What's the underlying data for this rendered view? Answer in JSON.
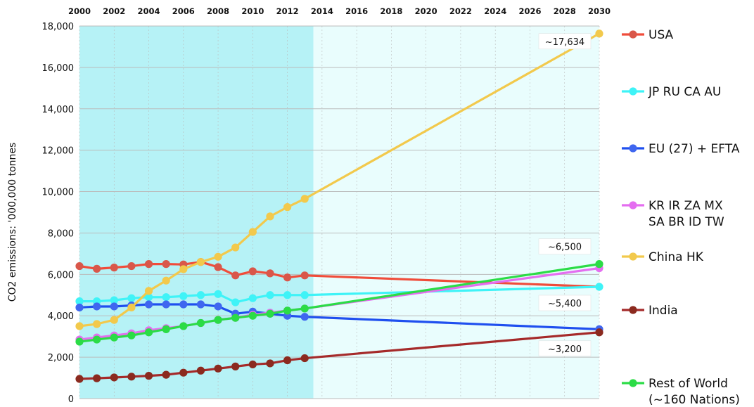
{
  "chart_data": {
    "type": "line",
    "ylabel": "CO2 emissions: '000,000 tonnes",
    "xlim": [
      2000,
      2030
    ],
    "ylim": [
      0,
      18000
    ],
    "grid": true,
    "legend_position": "right",
    "x_ticks": [
      "2000",
      "2002",
      "2004",
      "2006",
      "2008",
      "2010",
      "2012",
      "2014",
      "2016",
      "2018",
      "2020",
      "2022",
      "2024",
      "2026",
      "2028",
      "2030"
    ],
    "y_ticks": [
      "0",
      "2,000",
      "4,000",
      "6,000",
      "8,000",
      "10,000",
      "12,000",
      "14,000",
      "16,000",
      "18,000"
    ],
    "historical_shading_end": 2013,
    "colors": {
      "historical_bg": "#b6f2f6",
      "projection_bg": "#e9fdfd",
      "grid": "#bbbbbb"
    },
    "series": [
      {
        "name": "USA",
        "color": "#f04c3a",
        "point_color": "#d9574a",
        "x": [
          2000,
          2001,
          2002,
          2003,
          2004,
          2005,
          2006,
          2007,
          2008,
          2009,
          2010,
          2011,
          2012,
          2013,
          2030
        ],
        "y": [
          6400,
          6270,
          6330,
          6400,
          6500,
          6500,
          6480,
          6600,
          6350,
          5950,
          6150,
          6050,
          5850,
          5950,
          5400
        ],
        "point_mask": [
          1,
          1,
          1,
          1,
          1,
          1,
          1,
          1,
          1,
          1,
          1,
          1,
          1,
          1,
          0
        ]
      },
      {
        "name": "JP RU CA AU",
        "color": "#3ff3f7",
        "point_color": "#3ff3f7",
        "x": [
          2000,
          2001,
          2002,
          2003,
          2004,
          2005,
          2006,
          2007,
          2008,
          2009,
          2010,
          2011,
          2012,
          2013,
          2030
        ],
        "y": [
          4700,
          4700,
          4750,
          4850,
          4900,
          4900,
          4950,
          5000,
          5050,
          4650,
          4850,
          5000,
          5000,
          5000,
          5400
        ],
        "point_mask": [
          1,
          1,
          1,
          1,
          1,
          1,
          1,
          1,
          1,
          1,
          1,
          1,
          1,
          1,
          1
        ]
      },
      {
        "name": "EU (27) + EFTA",
        "color": "#1f4fef",
        "point_color": "#3f66ef",
        "x": [
          2000,
          2001,
          2002,
          2003,
          2004,
          2005,
          2006,
          2007,
          2008,
          2009,
          2010,
          2011,
          2012,
          2013,
          2030
        ],
        "y": [
          4400,
          4450,
          4450,
          4500,
          4550,
          4550,
          4550,
          4550,
          4450,
          4100,
          4200,
          4100,
          4000,
          3950,
          3350
        ],
        "point_mask": [
          1,
          1,
          1,
          1,
          1,
          1,
          1,
          1,
          1,
          1,
          1,
          1,
          1,
          1,
          1
        ]
      },
      {
        "name": "KR IR ZA MX SA BR ID TW",
        "color": "#e46ef0",
        "point_color": "#e46ef0",
        "x": [
          2000,
          2001,
          2002,
          2003,
          2004,
          2005,
          2006,
          2007,
          2008,
          2009,
          2010,
          2011,
          2012,
          2013,
          2030
        ],
        "y": [
          2850,
          2950,
          3050,
          3150,
          3300,
          3400,
          3500,
          3650,
          3800,
          3900,
          4050,
          4150,
          4250,
          4350,
          6300
        ],
        "point_mask": [
          1,
          1,
          1,
          1,
          1,
          1,
          1,
          1,
          1,
          1,
          1,
          1,
          1,
          1,
          1
        ]
      },
      {
        "name": "China HK",
        "color": "#f2c94c",
        "point_color": "#f2c94c",
        "x": [
          2000,
          2001,
          2002,
          2003,
          2004,
          2005,
          2006,
          2007,
          2008,
          2009,
          2010,
          2011,
          2012,
          2013,
          2030
        ],
        "y": [
          3500,
          3600,
          3800,
          4400,
          5200,
          5700,
          6250,
          6600,
          6850,
          7300,
          8050,
          8800,
          9250,
          9650,
          17634
        ],
        "point_mask": [
          1,
          1,
          1,
          1,
          1,
          1,
          1,
          1,
          1,
          1,
          1,
          1,
          1,
          1,
          1
        ]
      },
      {
        "name": "India",
        "color": "#a52a2a",
        "point_color": "#8b2a1f",
        "x": [
          2000,
          2001,
          2002,
          2003,
          2004,
          2005,
          2006,
          2007,
          2008,
          2009,
          2010,
          2011,
          2012,
          2013,
          2030
        ],
        "y": [
          950,
          980,
          1020,
          1060,
          1100,
          1150,
          1250,
          1350,
          1450,
          1550,
          1650,
          1700,
          1850,
          1950,
          3200
        ],
        "point_mask": [
          1,
          1,
          1,
          1,
          1,
          1,
          1,
          1,
          1,
          1,
          1,
          1,
          1,
          1,
          1
        ]
      },
      {
        "name": "Rest of World\n(~160 Nations)",
        "color": "#2bdc46",
        "point_color": "#2bdc46",
        "x": [
          2000,
          2001,
          2002,
          2003,
          2004,
          2005,
          2006,
          2007,
          2008,
          2009,
          2010,
          2011,
          2012,
          2013,
          2030
        ],
        "y": [
          2750,
          2850,
          2950,
          3050,
          3200,
          3350,
          3500,
          3650,
          3800,
          3900,
          4000,
          4100,
          4250,
          4350,
          6500
        ],
        "point_mask": [
          1,
          1,
          1,
          1,
          1,
          1,
          1,
          1,
          1,
          1,
          1,
          1,
          1,
          1,
          1
        ]
      }
    ],
    "annotations": [
      {
        "text": "~17,634",
        "x": 2030,
        "y": 17634,
        "anchor": "left"
      },
      {
        "text": "~6,500",
        "x": 2030,
        "y": 6500,
        "anchor": "left-above"
      },
      {
        "text": "~5,400",
        "x": 2030,
        "y": 5400,
        "anchor": "left-below"
      },
      {
        "text": "~3,200",
        "x": 2030,
        "y": 3200,
        "anchor": "left-below"
      }
    ]
  }
}
